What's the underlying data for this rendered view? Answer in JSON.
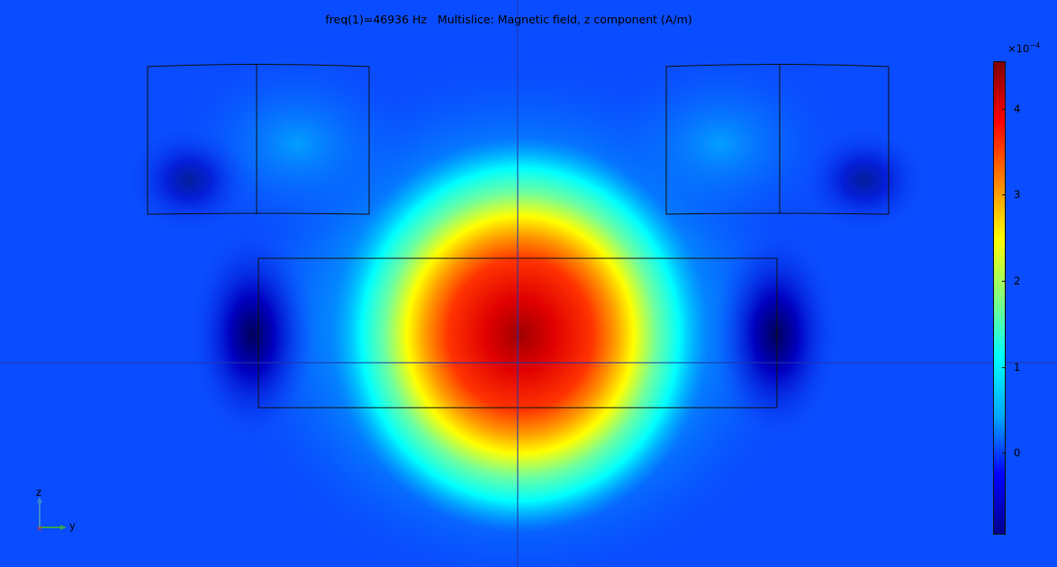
{
  "plot": {
    "title": "freq(1)=46936 Hz   Multislice: Magnetic field, z component (A/m)"
  },
  "colorbar": {
    "exponent_base": "×10",
    "exponent_power": "−4",
    "ticks": [
      "4",
      "3",
      "2",
      "1",
      "0"
    ],
    "tick_values": [
      4,
      3,
      2,
      1,
      0
    ],
    "min": -0.95,
    "max": 4.55,
    "colormap": [
      "#00008f",
      "#0000ff",
      "#00a8ff",
      "#00ffff",
      "#80ff80",
      "#ffff00",
      "#ff8000",
      "#ff0000",
      "#800000"
    ]
  },
  "axes": {
    "vertical_label": "z",
    "horizontal_label": "y",
    "colors": {
      "z": "#3a86c8",
      "y": "#31a354",
      "origin": "#e0342a"
    }
  },
  "colors": {
    "background": "#0a4cff",
    "outline": "#111111",
    "slice_line": "#2233aa"
  }
}
